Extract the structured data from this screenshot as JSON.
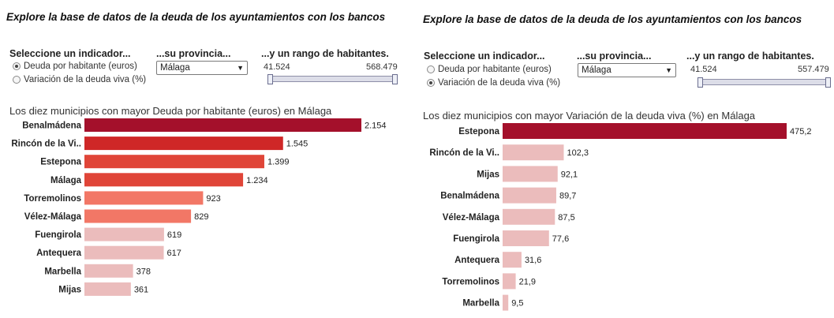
{
  "colors": {
    "level1": "#a4102b",
    "level2": "#cf2727",
    "level3": "#e04538",
    "level4": "#f27766",
    "level5": "#ebbcbc"
  },
  "left": {
    "title": "Explore la base de datos de la deuda de los ayuntamientos con los bancos",
    "indicator_label": "Seleccione un indicador...",
    "options": [
      "Deuda por habitante (euros)",
      "Variación de la deuda viva (%)"
    ],
    "selected_index": 0,
    "province_label": "...su provincia...",
    "province_value": "Málaga",
    "range_label": "...y un rango de habitantes.",
    "range_min": "41.524",
    "range_max": "568.479"
  },
  "right": {
    "title": "Explore la base de datos de la deuda de los ayuntamientos con los bancos",
    "indicator_label": "Seleccione un indicador...",
    "options": [
      "Deuda por habitante (euros)",
      "Variación de la deuda viva (%)"
    ],
    "selected_index": 1,
    "province_label": "...su provincia...",
    "province_value": "Málaga",
    "range_label": "...y un rango de habitantes.",
    "range_min": "41.524",
    "range_max": "557.479"
  },
  "chart_data": [
    {
      "type": "bar",
      "orientation": "horizontal",
      "title": "Los diez municipios con mayor Deuda por habitante (euros) en Málaga",
      "categories": [
        "Benalmádena",
        "Rincón de la Vi..",
        "Estepona",
        "Málaga",
        "Torremolinos",
        "Vélez-Málaga",
        "Fuengirola",
        "Antequera",
        "Marbella",
        "Mijas"
      ],
      "values": [
        2154,
        1545,
        1399,
        1234,
        923,
        829,
        619,
        617,
        378,
        361
      ],
      "value_labels": [
        "2.154",
        "1.545",
        "1.399",
        "1.234",
        "923",
        "829",
        "619",
        "617",
        "378",
        "361"
      ],
      "color_levels": [
        1,
        2,
        3,
        3,
        4,
        4,
        5,
        5,
        5,
        5
      ]
    },
    {
      "type": "bar",
      "orientation": "horizontal",
      "title": "Los diez municipios con mayor Variación de la deuda viva (%) en Málaga",
      "categories": [
        "Estepona",
        "Rincón de la Vi..",
        "Mijas",
        "Benalmádena",
        "Vélez-Málaga",
        "Fuengirola",
        "Antequera",
        "Torremolinos",
        "Marbella"
      ],
      "values": [
        475.2,
        102.3,
        92.1,
        89.7,
        87.5,
        77.6,
        31.6,
        21.9,
        9.5
      ],
      "value_labels": [
        "475,2",
        "102,3",
        "92,1",
        "89,7",
        "87,5",
        "77,6",
        "31,6",
        "21,9",
        "9,5"
      ],
      "color_levels": [
        1,
        5,
        5,
        5,
        5,
        5,
        5,
        5,
        5
      ]
    }
  ]
}
